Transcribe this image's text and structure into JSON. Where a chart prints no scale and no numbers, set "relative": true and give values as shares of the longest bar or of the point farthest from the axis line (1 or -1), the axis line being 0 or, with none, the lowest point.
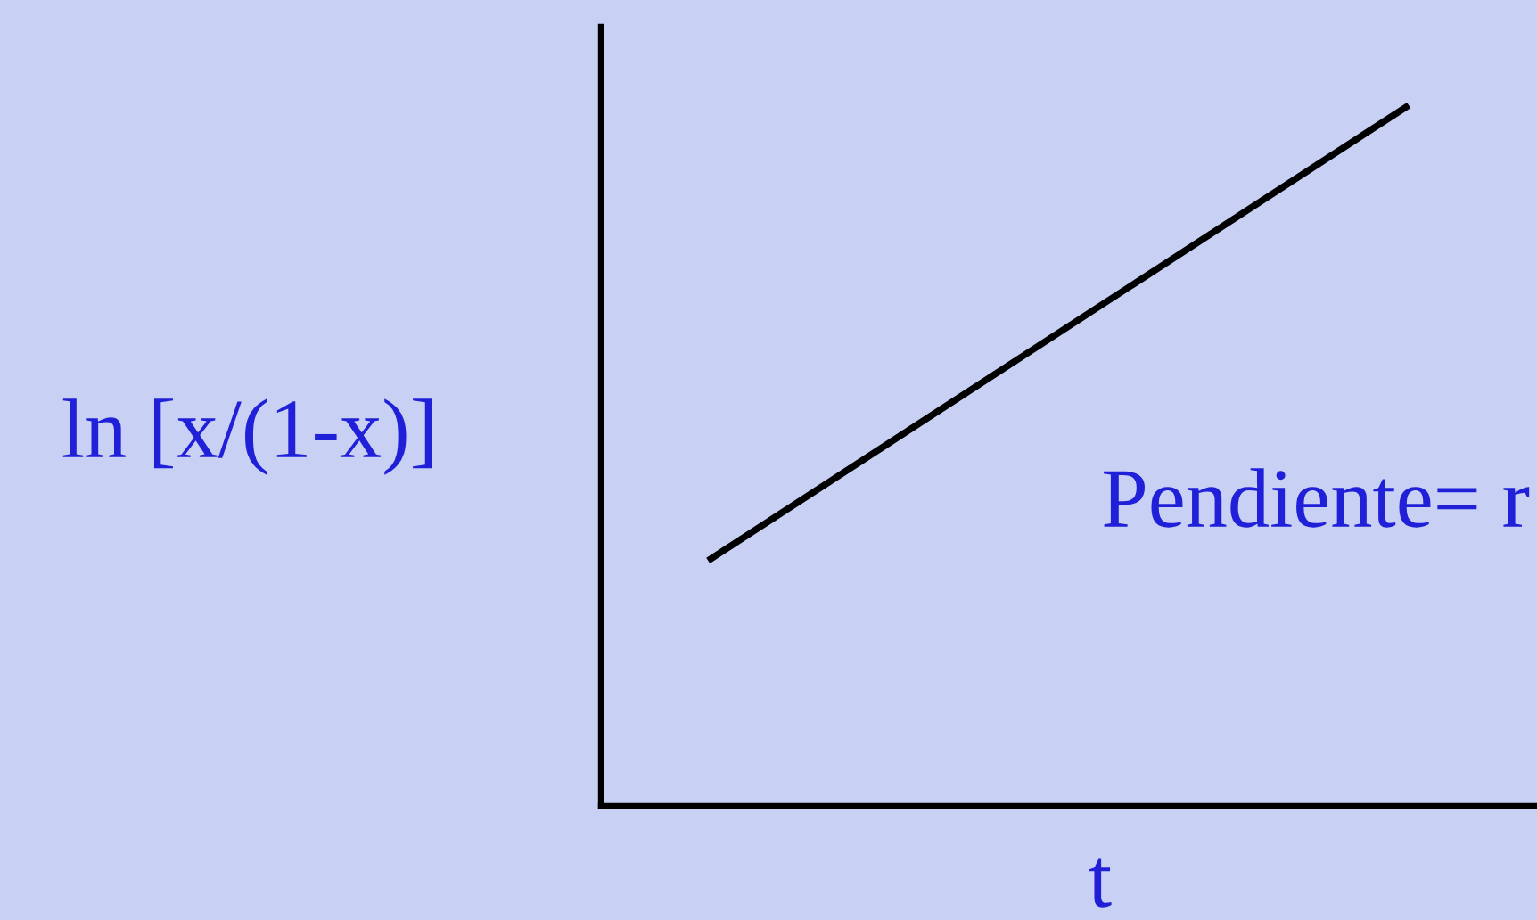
{
  "chart_data": {
    "type": "line",
    "relative": true,
    "categories": [
      null,
      null
    ],
    "values": [
      0.35,
      1
    ],
    "color": "#000000",
    "line_style": "solid",
    "xlabel": "t",
    "ylabel": "ln [x/(1-x)]",
    "annotations": [
      "Pendiente= r"
    ]
  }
}
